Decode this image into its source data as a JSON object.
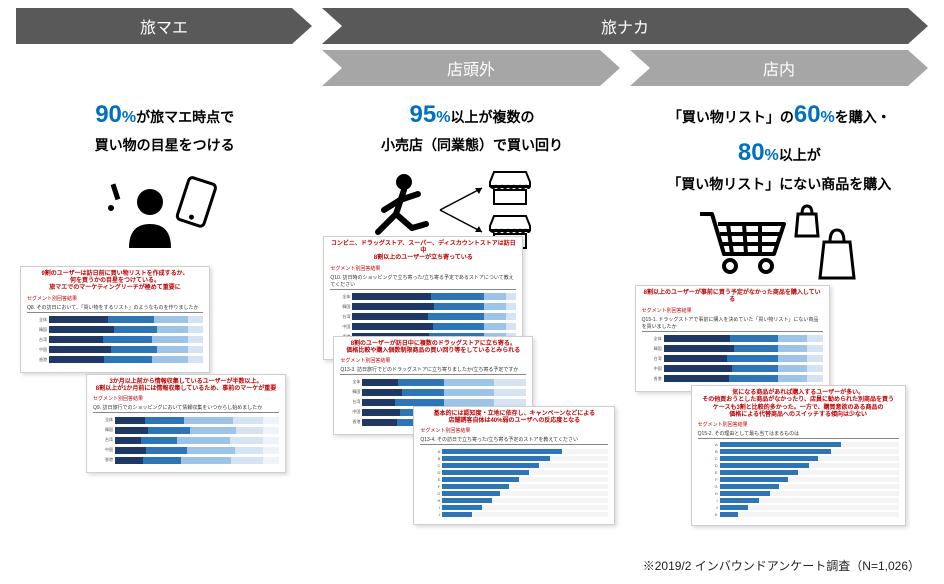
{
  "colors": {
    "header_dark": "#595959",
    "header_light": "#a6a6a6",
    "accent_blue": "#0070c0",
    "chart_dark": "#1f3864",
    "chart_mid": "#2e75b6",
    "chart_light": "#9dc3e6",
    "chart_pale": "#d6e3f3",
    "chart_yellow": "#ffc000",
    "title_red": "#c00000"
  },
  "stages": {
    "pre": {
      "label": "旅マエ"
    },
    "during": {
      "label": "旅ナカ"
    },
    "sub_outside": {
      "label": "店頭外"
    },
    "sub_inside": {
      "label": "店内"
    }
  },
  "col1": {
    "big": "90",
    "pct": "%",
    "line1_rest": "が旅マエ時点で",
    "line2": "買い物の目星をつける"
  },
  "col2": {
    "big": "95",
    "pct": "%",
    "line1_rest": "以上が複数の",
    "line2": "小売店（同業態）で買い回り"
  },
  "col3": {
    "line1_pre": "「買い物リスト」の",
    "big1": "60",
    "pct": "%",
    "line1_post": "を購入・",
    "big2": "80",
    "line2_rest": "以上が",
    "line3": "「買い物リスト」にない商品を購入"
  },
  "charts": {
    "c1a": {
      "title": "9割のユーザーは訪日前に買い物リストを作成するか、\n何を買うかの目星をつけている。\n旅マエでのマーケティングリーチが極めて重要に",
      "sub": "セグメント別回答結果",
      "q": "Q8. その訪日において、「買い物をするリスト」のようなものを作りましたか",
      "rows": [
        "全体",
        "韓国",
        "台湾",
        "中国",
        "香港"
      ],
      "segs": [
        [
          38,
          30,
          22,
          10
        ],
        [
          42,
          28,
          20,
          10
        ],
        [
          35,
          32,
          23,
          10
        ],
        [
          40,
          30,
          20,
          10
        ],
        [
          36,
          31,
          23,
          10
        ]
      ]
    },
    "c1b": {
      "title": "3か月以上前から情報収集しているユーザーが半数以上。\n8割以上が1か月前には情報収集しているため、事前のマーケが重要",
      "sub": "セグメント別回答結果",
      "q": "Q9. 訪日旅行でのショッピングにおいて情報収集をいつからし始めましたか",
      "rows": [
        "全体",
        "韓国",
        "台湾",
        "中国",
        "香港"
      ],
      "segs": [
        [
          18,
          24,
          30,
          18,
          10
        ],
        [
          20,
          26,
          28,
          16,
          10
        ],
        [
          16,
          22,
          32,
          20,
          10
        ],
        [
          19,
          25,
          29,
          17,
          10
        ],
        [
          17,
          23,
          31,
          19,
          10
        ]
      ]
    },
    "c2a": {
      "title": "コンビニ、ドラッグストア、スーパー、ディスカウントストアは訪日中\n8割以上のユーザーが立ち寄っている",
      "sub": "セグメント別回答結果",
      "q": "Q10. 訪日時のショッピングで立ち寄った/立ち寄る予定であるストアについて教えてください",
      "rows": [
        "全体",
        "韓国",
        "台湾",
        "中国",
        "香港",
        "タイ"
      ],
      "segs": [
        [
          48,
          32,
          14,
          6
        ],
        [
          50,
          30,
          14,
          6
        ],
        [
          46,
          34,
          14,
          6
        ],
        [
          49,
          31,
          14,
          6
        ],
        [
          47,
          33,
          14,
          6
        ],
        [
          48,
          32,
          14,
          6
        ]
      ]
    },
    "c2b": {
      "title": "8割のユーザーが訪日中に複数のドラッグストアに立ち寄る。\n価格比較や購入個数制限商品の買い回り等をしているとみられる",
      "sub": "セグメント別回答結果",
      "q": "Q13-3. 訪日旅行でどのドラッグストアに立ち寄りましたか/立ち寄る予定ですか",
      "rows": [
        "全体",
        "韓国",
        "台湾",
        "中国",
        "香港"
      ],
      "segs": [
        [
          22,
          28,
          30,
          20
        ],
        [
          24,
          26,
          30,
          20
        ],
        [
          20,
          30,
          30,
          20
        ],
        [
          23,
          27,
          30,
          20
        ],
        [
          21,
          29,
          30,
          20
        ]
      ]
    },
    "c2c": {
      "title": "基本的には認知度・立地に依存し、キャンペーンなどによる\n店舗誘客自体は40%弱のユーザへの反応度となる",
      "sub": "セグメント別回答結果",
      "q": "Q13-4. その訪日で立ち寄った/立ち寄る予定のストアを教えてください",
      "rows": [
        "A",
        "B",
        "C",
        "D",
        "E",
        "F",
        "G",
        "H",
        "I",
        "J"
      ],
      "single": [
        72,
        65,
        58,
        52,
        46,
        40,
        35,
        30,
        24,
        18
      ]
    },
    "c3a": {
      "title": "8割以上のユーザーが事前に買う予定がなかった商品を購入している",
      "sub": "セグメント別回答結果",
      "q": "Q15-1. ドラッグストアで事前に購入を決めていた「買い物リスト」にない商品を買いましたか",
      "rows": [
        "全体",
        "韓国",
        "台湾",
        "中国",
        "香港"
      ],
      "segs": [
        [
          42,
          30,
          18,
          10
        ],
        [
          44,
          28,
          18,
          10
        ],
        [
          40,
          32,
          18,
          10
        ],
        [
          43,
          29,
          18,
          10
        ],
        [
          41,
          31,
          18,
          10
        ]
      ]
    },
    "c3b": {
      "title": "気になる商品があれば購入するユーザーが多い。\nその他買おうとした商品がなかったり、店員に勧められた別商品を買う\nケースも3割と比較的多かった。一方で、購買意欲のある商品の\n価格による代替商品へのスイッチする傾向は少ない",
      "sub": "セグメント別回答結果",
      "q": "Q15-2. その理由として最も当てはまるものは",
      "rows": [
        "A",
        "B",
        "C",
        "D",
        "E",
        "F",
        "G",
        "H",
        "I",
        "J",
        "K"
      ],
      "single": [
        68,
        62,
        55,
        50,
        44,
        38,
        33,
        28,
        22,
        16,
        10
      ]
    }
  },
  "footnote": "※2019/2 インバウンドアンケート調査（N=1,026）"
}
